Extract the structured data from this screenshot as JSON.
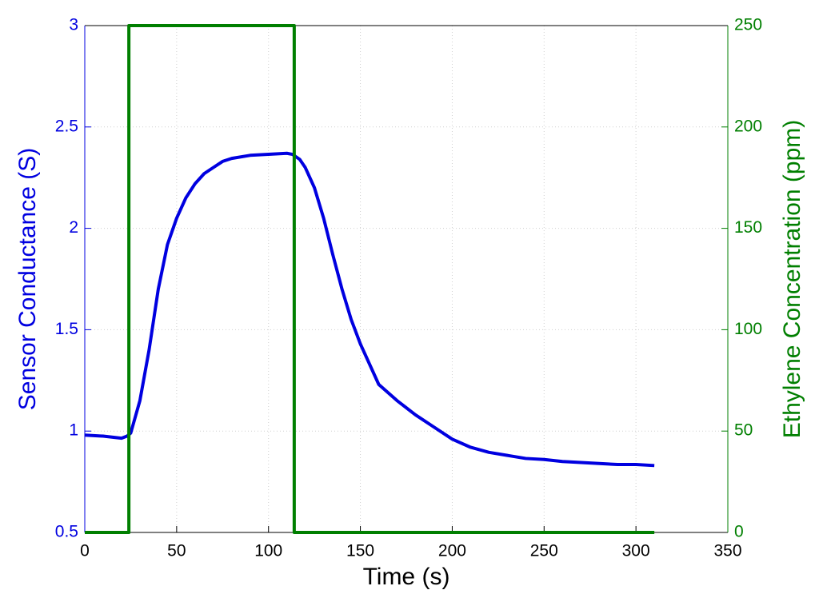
{
  "chart_data": {
    "type": "line",
    "xlabel": "Time (s)",
    "ylabel": "Sensor Conductance (S)",
    "y2label": "Ethylene Concentration (ppm)",
    "xlim": [
      0,
      350
    ],
    "xticks": [
      0,
      50,
      100,
      150,
      200,
      250,
      300,
      350
    ],
    "ylim": [
      0.5,
      3
    ],
    "yticks": [
      0.5,
      1,
      1.5,
      2,
      2.5,
      3
    ],
    "y2lim": [
      0,
      250
    ],
    "y2ticks": [
      0,
      50,
      100,
      150,
      200,
      250
    ],
    "grid": true,
    "ycolor": "#0000e0",
    "y2color": "#007f00",
    "series": [
      {
        "color": "#0000e0",
        "x": [
          0,
          10,
          20,
          23,
          25,
          30,
          35,
          40,
          45,
          50,
          55,
          60,
          65,
          70,
          75,
          80,
          90,
          100,
          110,
          113,
          117,
          120,
          125,
          130,
          135,
          140,
          145,
          150,
          160,
          170,
          180,
          190,
          200,
          210,
          220,
          230,
          240,
          250,
          260,
          270,
          280,
          290,
          300,
          310
        ],
        "values": [
          0.98,
          0.975,
          0.965,
          0.975,
          0.99,
          1.15,
          1.4,
          1.7,
          1.92,
          2.05,
          2.15,
          2.22,
          2.27,
          2.3,
          2.33,
          2.345,
          2.36,
          2.365,
          2.37,
          2.365,
          2.34,
          2.3,
          2.2,
          2.05,
          1.87,
          1.7,
          1.55,
          1.43,
          1.23,
          1.15,
          1.08,
          1.02,
          0.96,
          0.92,
          0.895,
          0.88,
          0.865,
          0.86,
          0.85,
          0.845,
          0.84,
          0.835,
          0.835,
          0.83
        ]
      },
      {
        "color": "#007f00",
        "axis": "y2",
        "x": [
          0,
          24,
          24,
          114,
          114,
          310
        ],
        "values": [
          0,
          0,
          250,
          250,
          0,
          0
        ]
      }
    ]
  }
}
